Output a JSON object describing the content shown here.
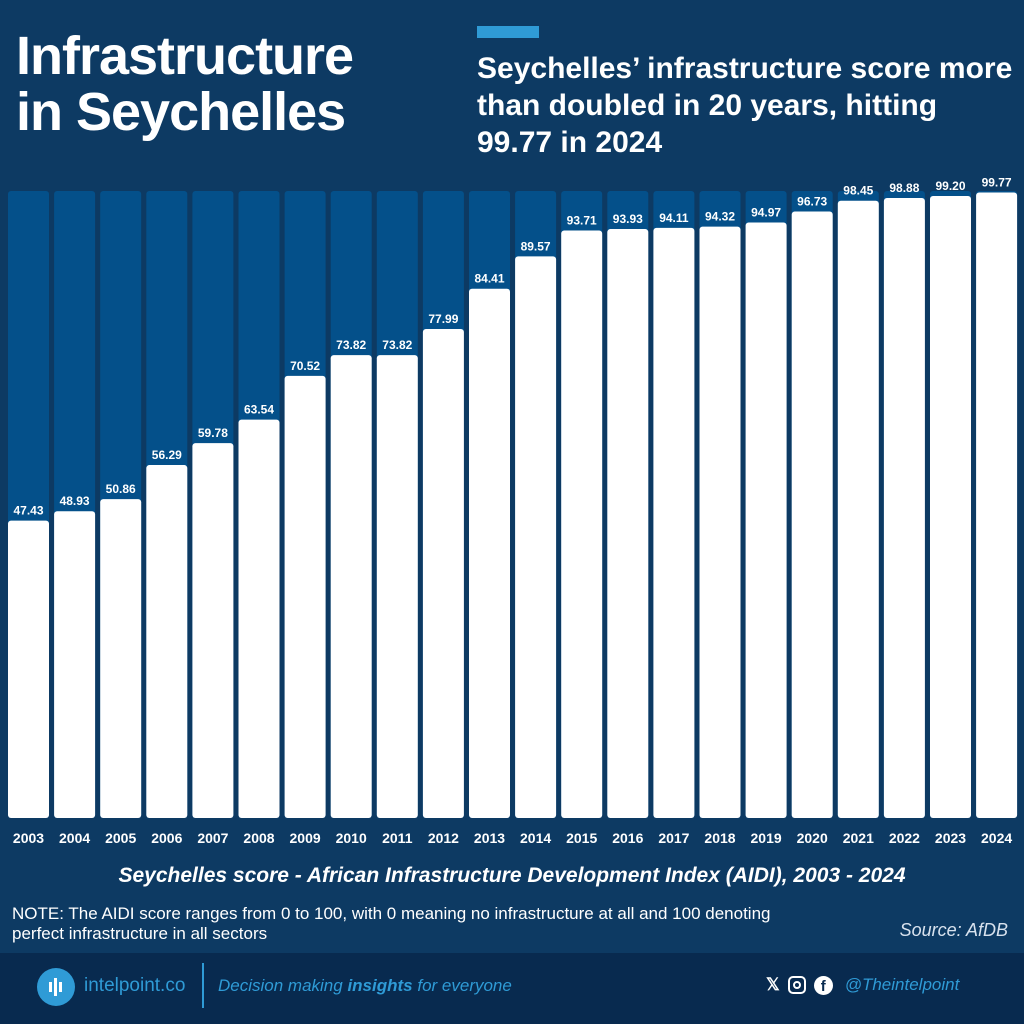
{
  "header": {
    "title_line1": "Infrastructure",
    "title_line2": "in Seychelles",
    "subtitle": "Seychelles’ infrastructure score more than doubled in 20 years, hitting 99.77 in 2024"
  },
  "chart_data": {
    "type": "bar",
    "categories": [
      "2003",
      "2004",
      "2005",
      "2006",
      "2007",
      "2008",
      "2009",
      "2010",
      "2011",
      "2012",
      "2013",
      "2014",
      "2015",
      "2016",
      "2017",
      "2018",
      "2019",
      "2020",
      "2021",
      "2022",
      "2023",
      "2024"
    ],
    "values": [
      47.43,
      48.93,
      50.86,
      56.29,
      59.78,
      63.54,
      70.52,
      73.82,
      73.82,
      77.99,
      84.41,
      89.57,
      93.71,
      93.93,
      94.11,
      94.32,
      94.97,
      96.73,
      98.45,
      98.88,
      99.2,
      99.77
    ],
    "ylim": [
      0,
      100
    ],
    "title": "Seychelles score - African Infrastructure Development Index (AIDI), 2003 - 2024",
    "colors": {
      "bar": "#ffffff",
      "track": "#04508a",
      "background": "#0d3a63"
    }
  },
  "note": "NOTE: The AIDI score ranges from 0 to 100, with 0 meaning no infrastructure at all and 100 denoting perfect infrastructure in all sectors",
  "source": "Source: AfDB",
  "footer": {
    "brand": "intelpoint.co",
    "tagline_pre": "Decision making ",
    "tagline_bold": "insights",
    "tagline_post": " for everyone",
    "handle": "@Theintelpoint"
  }
}
